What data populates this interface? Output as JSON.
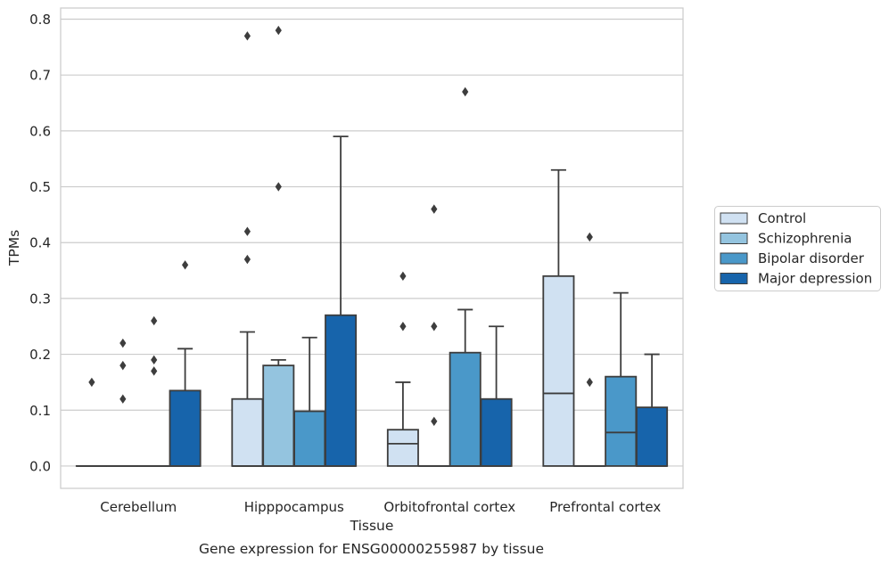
{
  "chart_data": {
    "type": "box",
    "title": "",
    "xlabel": "Tissue",
    "ylabel": "TPMs",
    "caption": "Gene expression for ENSG00000255987 by tissue",
    "categories": [
      "Cerebellum",
      "Hipppocampus",
      "Orbitofrontal cortex",
      "Prefrontal cortex"
    ],
    "ylim": [
      -0.04,
      0.82
    ],
    "yticks": [
      0.0,
      0.1,
      0.2,
      0.3,
      0.4,
      0.5,
      0.6,
      0.7,
      0.8
    ],
    "ytick_labels": [
      "0.0",
      "0.1",
      "0.2",
      "0.3",
      "0.4",
      "0.5",
      "0.6",
      "0.7",
      "0.8"
    ],
    "grid": true,
    "legend_position": "right",
    "series": [
      {
        "name": "Control",
        "color": "#d0e1f2",
        "boxes": [
          {
            "q1": 0,
            "median": 0,
            "q3": 0,
            "whisker_low": 0,
            "whisker_high": 0,
            "outliers": [
              0.15
            ]
          },
          {
            "q1": 0,
            "median": 0,
            "q3": 0.12,
            "whisker_low": 0,
            "whisker_high": 0.24,
            "outliers": [
              0.37,
              0.42,
              0.77
            ]
          },
          {
            "q1": 0,
            "median": 0.04,
            "q3": 0.065,
            "whisker_low": 0,
            "whisker_high": 0.15,
            "outliers": [
              0.25,
              0.34
            ]
          },
          {
            "q1": 0,
            "median": 0.13,
            "q3": 0.34,
            "whisker_low": 0,
            "whisker_high": 0.53,
            "outliers": []
          }
        ]
      },
      {
        "name": "Schizophrenia",
        "color": "#94c4df",
        "boxes": [
          {
            "q1": 0,
            "median": 0,
            "q3": 0,
            "whisker_low": 0,
            "whisker_high": 0,
            "outliers": [
              0.12,
              0.18,
              0.22
            ]
          },
          {
            "q1": 0,
            "median": 0,
            "q3": 0.18,
            "whisker_low": 0,
            "whisker_high": 0.19,
            "outliers": [
              0.5,
              0.78
            ]
          },
          {
            "q1": 0,
            "median": 0,
            "q3": 0,
            "whisker_low": 0,
            "whisker_high": 0,
            "outliers": [
              0.08,
              0.25,
              0.46
            ]
          },
          {
            "q1": 0,
            "median": 0,
            "q3": 0,
            "whisker_low": 0,
            "whisker_high": 0,
            "outliers": [
              0.15,
              0.41
            ]
          }
        ]
      },
      {
        "name": "Bipolar disorder",
        "color": "#4a98c9",
        "boxes": [
          {
            "q1": 0,
            "median": 0,
            "q3": 0,
            "whisker_low": 0,
            "whisker_high": 0,
            "outliers": [
              0.17,
              0.19,
              0.26
            ]
          },
          {
            "q1": 0,
            "median": 0,
            "q3": 0.098,
            "whisker_low": 0,
            "whisker_high": 0.23,
            "outliers": []
          },
          {
            "q1": 0,
            "median": 0,
            "q3": 0.203,
            "whisker_low": 0,
            "whisker_high": 0.28,
            "outliers": [
              0.67
            ]
          },
          {
            "q1": 0,
            "median": 0.06,
            "q3": 0.16,
            "whisker_low": 0,
            "whisker_high": 0.31,
            "outliers": []
          }
        ]
      },
      {
        "name": "Major depression",
        "color": "#1764ab",
        "boxes": [
          {
            "q1": 0,
            "median": 0,
            "q3": 0.135,
            "whisker_low": 0,
            "whisker_high": 0.21,
            "outliers": [
              0.36
            ]
          },
          {
            "q1": 0,
            "median": 0,
            "q3": 0.27,
            "whisker_low": 0,
            "whisker_high": 0.59,
            "outliers": []
          },
          {
            "q1": 0,
            "median": 0,
            "q3": 0.12,
            "whisker_low": 0,
            "whisker_high": 0.25,
            "outliers": []
          },
          {
            "q1": 0,
            "median": 0,
            "q3": 0.105,
            "whisker_low": 0,
            "whisker_high": 0.2,
            "outliers": []
          }
        ]
      }
    ]
  }
}
